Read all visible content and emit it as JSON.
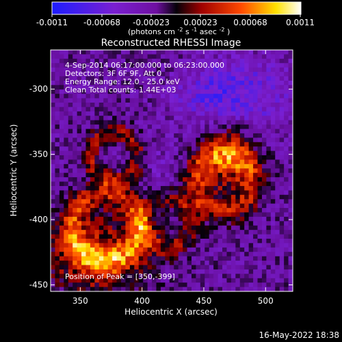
{
  "chart_data": {
    "type": "heatmap",
    "title": "Reconstructed RHESSI Image",
    "xlabel": "Heliocentric X (arcsec)",
    "ylabel": "Heliocentric Y (arcsec)",
    "xlim": [
      326,
      522
    ],
    "ylim": [
      -455,
      -270
    ],
    "xticks": [
      350,
      400,
      450,
      500
    ],
    "yticks": [
      -300,
      -350,
      -400,
      -450
    ],
    "colorbar": {
      "ticks": [
        "-0.0011",
        "-0.00068",
        "-0.00023",
        "0.00023",
        "0.00068",
        "0.0011"
      ],
      "min": -0.0011,
      "max": 0.0011,
      "unit_label_parts": {
        "prefix": "(photons cm",
        "exp1": "-2",
        "mid1": " s",
        "exp2": "-1",
        "mid2": " asec",
        "exp3": "-2",
        "suffix": ")"
      }
    },
    "annotations": {
      "line1": "4-Sep-2014 06:17:00.000 to 06:23:00.000",
      "line2": "Detectors: 3F 6F 9F, Att 0",
      "line3": "Energy Range: 12.0 - 25.0 keV",
      "line4": "Clean     Total counts: 1.44E+03",
      "peak": "Position of Peak = [350,-399]"
    },
    "peak": {
      "x": 350,
      "y": -399
    },
    "footer_date": "16-May-2022 18:38",
    "heatmap_description": "Pixelated intensity map with strongest emission in the lower-left and a secondary bright region to the right center."
  }
}
